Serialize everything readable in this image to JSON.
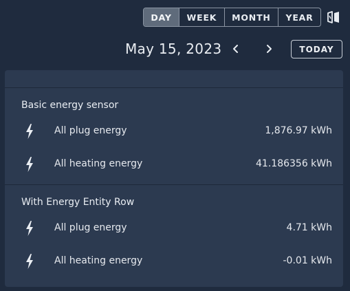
{
  "period_selector": {
    "buttons": [
      "DAY",
      "WEEK",
      "MONTH",
      "YEAR"
    ],
    "active": "DAY"
  },
  "date_nav": {
    "date": "May 15, 2023",
    "today_label": "TODAY"
  },
  "icons": {
    "compare": "compare-icon",
    "prev": "chevron-left-icon",
    "next": "chevron-right-icon",
    "energy": "lightning-bolt-icon"
  },
  "colors": {
    "background": "#1f2b3e",
    "card": "#2c3a50",
    "active_button": "#5f6b7b",
    "text": "#e9edf2"
  },
  "sections": [
    {
      "title": "Basic energy sensor",
      "rows": [
        {
          "name": "All plug energy",
          "value": "1,876.97 kWh"
        },
        {
          "name": "All heating energy",
          "value": "41.186356 kWh"
        }
      ]
    },
    {
      "title": "With Energy Entity Row",
      "rows": [
        {
          "name": "All plug energy",
          "value": "4.71 kWh"
        },
        {
          "name": "All heating energy",
          "value": "-0.01 kWh"
        }
      ]
    }
  ]
}
